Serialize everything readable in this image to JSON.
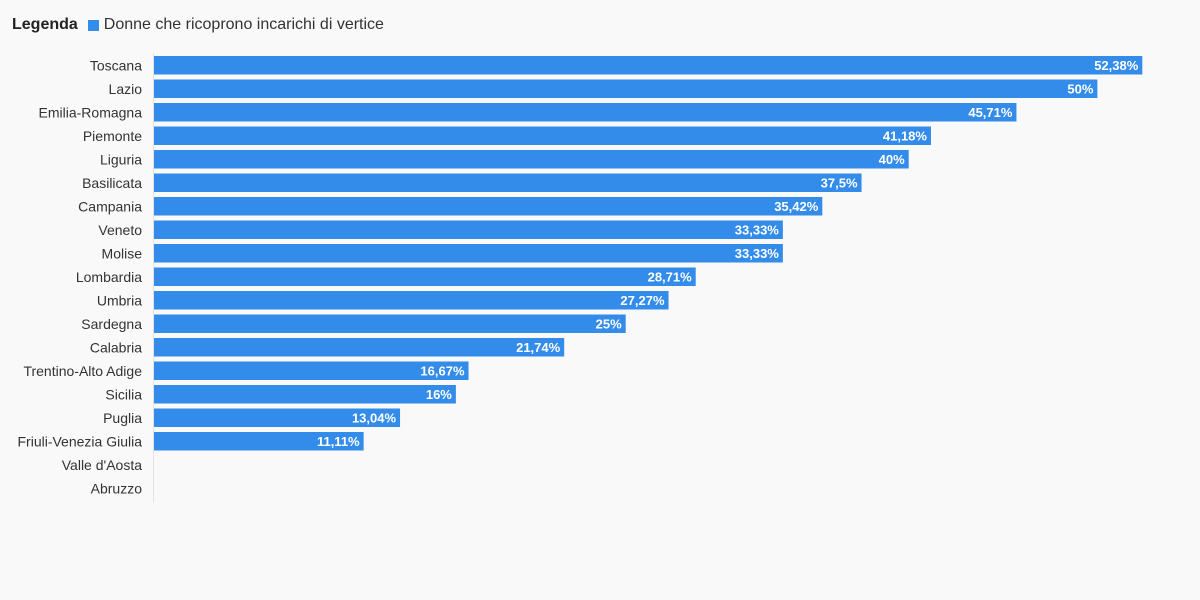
{
  "legend": {
    "title": "Legenda",
    "label": "Donne che ricoprono incarichi di vertice"
  },
  "colors": {
    "bar": "#338cea",
    "bar_label": "#ffffff",
    "category_label": "#333333",
    "axis": "#e2e2e2"
  },
  "chart_data": {
    "type": "bar",
    "orientation": "horizontal",
    "legend_position": "top-left",
    "grid": false,
    "xlim": [
      0,
      53
    ],
    "categories": [
      "Toscana",
      "Lazio",
      "Emilia-Romagna",
      "Piemonte",
      "Liguria",
      "Basilicata",
      "Campania",
      "Veneto",
      "Molise",
      "Lombardia",
      "Umbria",
      "Sardegna",
      "Calabria",
      "Trentino-Alto Adige",
      "Sicilia",
      "Puglia",
      "Friuli-Venezia Giulia",
      "Valle d'Aosta",
      "Abruzzo"
    ],
    "series": [
      {
        "name": "Donne che ricoprono incarichi di vertice",
        "values": [
          52.38,
          50,
          45.71,
          41.18,
          40,
          37.5,
          35.42,
          33.33,
          33.33,
          28.71,
          27.27,
          25,
          21.74,
          16.67,
          16,
          13.04,
          11.11,
          null,
          null
        ],
        "labels": [
          "52,38%",
          "50%",
          "45,71%",
          "41,18%",
          "40%",
          "37,5%",
          "35,42%",
          "33,33%",
          "33,33%",
          "28,71%",
          "27,27%",
          "25%",
          "21,74%",
          "16,67%",
          "16%",
          "13,04%",
          "11,11%",
          "",
          ""
        ]
      }
    ]
  }
}
